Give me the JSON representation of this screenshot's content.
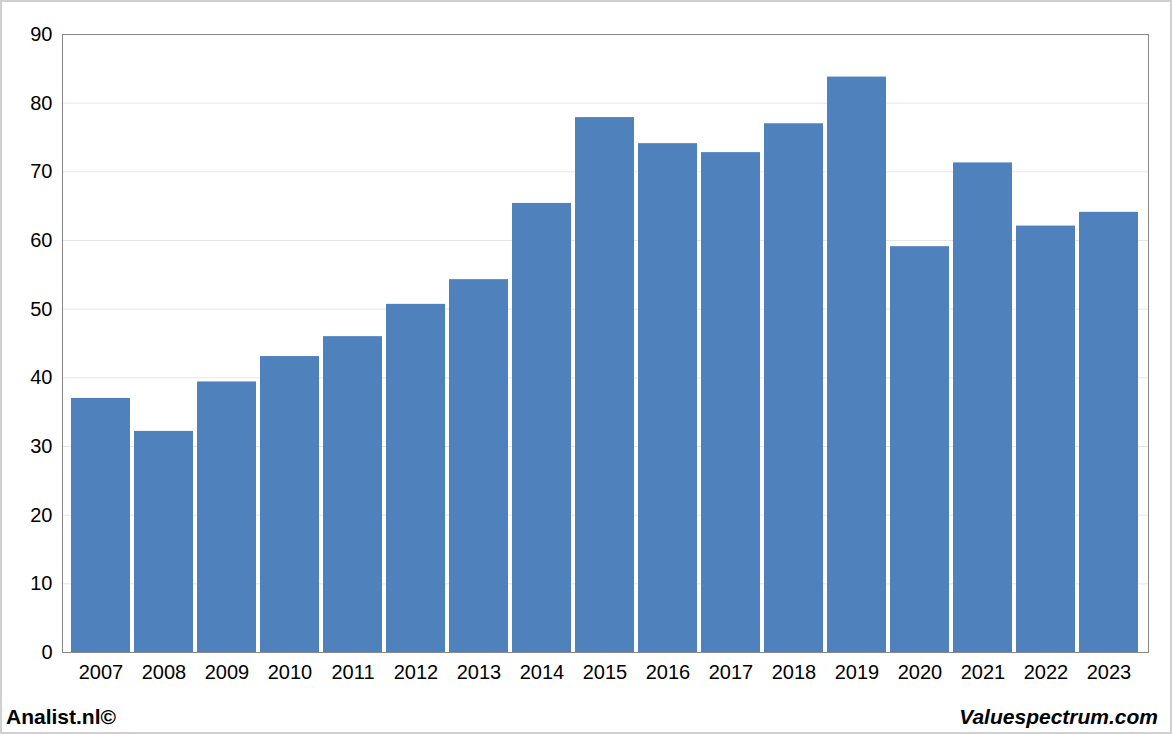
{
  "chart_data": {
    "type": "bar",
    "categories": [
      "2007",
      "2008",
      "2009",
      "2010",
      "2011",
      "2012",
      "2013",
      "2014",
      "2015",
      "2016",
      "2017",
      "2018",
      "2019",
      "2020",
      "2021",
      "2022",
      "2023"
    ],
    "values": [
      37,
      32.2,
      39.4,
      43.1,
      46,
      50.7,
      54.3,
      65.4,
      77.9,
      74.1,
      72.8,
      77,
      83.8,
      59.1,
      71.3,
      62.1,
      64.1
    ],
    "color": "#4f81bd",
    "ylim": [
      0,
      90
    ],
    "yticks": [
      0,
      10,
      20,
      30,
      40,
      50,
      60,
      70,
      80,
      90
    ],
    "grid": true,
    "annotations": [
      "Analist.nl©",
      "Valuespectrum.com"
    ]
  }
}
